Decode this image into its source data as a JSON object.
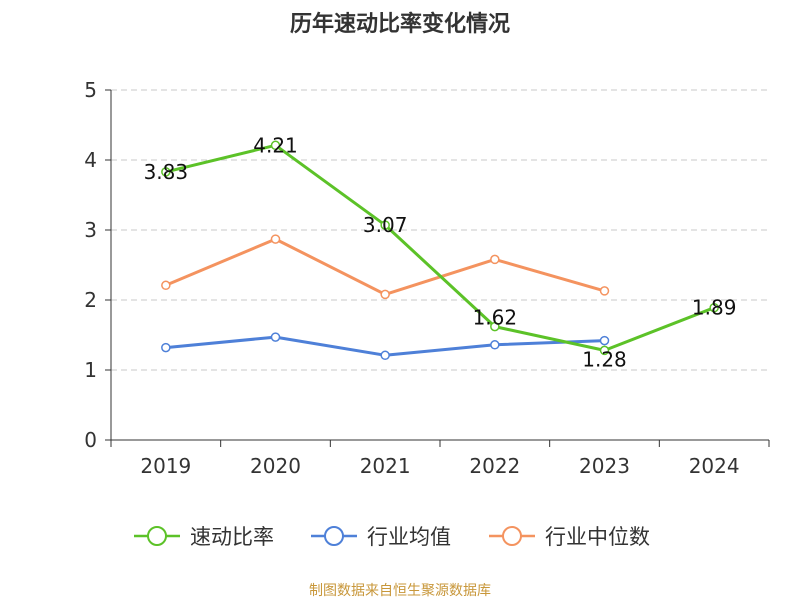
{
  "chart_data": {
    "type": "line",
    "title": "历年速动比率变化情况",
    "xlabel": "",
    "ylabel": "",
    "categories": [
      "2019",
      "2020",
      "2021",
      "2022",
      "2023",
      "2024"
    ],
    "ylim": [
      0,
      5
    ],
    "yticks": [
      0,
      1,
      2,
      3,
      4,
      5
    ],
    "grid": true,
    "legend_position": "bottom",
    "series": [
      {
        "name": "速动比率",
        "color": "#5cc228",
        "values": [
          3.83,
          4.21,
          3.07,
          1.62,
          1.28,
          1.89
        ],
        "labels": [
          "3.83",
          "4.21",
          "3.07",
          "1.62",
          "1.28",
          "1.89"
        ]
      },
      {
        "name": "行业均值",
        "color": "#4e80d8",
        "values": [
          1.32,
          1.47,
          1.21,
          1.36,
          1.42,
          null
        ]
      },
      {
        "name": "行业中位数",
        "color": "#f4935f",
        "values": [
          2.21,
          2.87,
          2.08,
          2.58,
          2.13,
          null
        ]
      }
    ]
  },
  "source": "制图数据来自恒生聚源数据库"
}
